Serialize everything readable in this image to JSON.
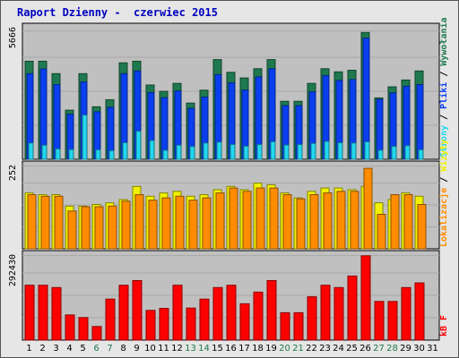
{
  "title": "Raport Dzienny -  czerwiec 2015",
  "colors": {
    "hits": "#1e7a4e",
    "files": "#0a3ff0",
    "pages": "#22d8f0",
    "visits": "#f0f000",
    "sites": "#ff8c00",
    "kbytes": "#ff0000",
    "weekend_label": "#1e7a4e",
    "weekday_label": "#000000"
  },
  "chart_data": [
    {
      "type": "bar",
      "name": "hits-files-pages",
      "y_max_label": "5666",
      "ylim": [
        0,
        5666
      ],
      "legend": [
        "Wywołania",
        "Pliki",
        "Strony"
      ],
      "legend_colors": [
        "#1e7a4e",
        "#0a3ff0",
        "#22d8f0"
      ],
      "categories": [
        "1",
        "2",
        "3",
        "4",
        "5",
        "6",
        "7",
        "8",
        "9",
        "10",
        "11",
        "12",
        "13",
        "14",
        "15",
        "16",
        "17",
        "18",
        "19",
        "20",
        "21",
        "22",
        "23",
        "24",
        "25",
        "26",
        "27",
        "28",
        "29",
        "30",
        "31"
      ],
      "series": [
        {
          "name": "Wywołania",
          "values": [
            4330,
            4330,
            3780,
            2170,
            3780,
            2320,
            2630,
            4260,
            4330,
            3280,
            3000,
            3350,
            2480,
            3050,
            4400,
            3840,
            3590,
            4000,
            4400,
            2560,
            2560,
            3350,
            4000,
            3860,
            3930,
            5600,
            2710,
            3200,
            3500,
            3900,
            0
          ]
        },
        {
          "name": "Pliki",
          "values": [
            3780,
            3990,
            3300,
            1990,
            3410,
            2100,
            2300,
            3780,
            3900,
            2950,
            2720,
            3020,
            2250,
            2750,
            3740,
            3380,
            3060,
            3640,
            4000,
            2370,
            2370,
            2980,
            3700,
            3480,
            3520,
            5350,
            2650,
            2930,
            3230,
            3300,
            0
          ]
        },
        {
          "name": "Strony",
          "values": [
            720,
            620,
            460,
            430,
            1950,
            420,
            380,
            730,
            1240,
            830,
            400,
            620,
            560,
            720,
            760,
            650,
            580,
            650,
            780,
            630,
            650,
            700,
            790,
            730,
            720,
            770,
            400,
            570,
            600,
            420,
            0
          ]
        }
      ]
    },
    {
      "type": "bar",
      "name": "visits-sites",
      "y_max_label": "252",
      "ylim": [
        0,
        252
      ],
      "legend": [
        "Wizyty",
        "Lokalizacje"
      ],
      "legend_colors": [
        "#f0f000",
        "#ff8c00"
      ],
      "categories": [
        "1",
        "2",
        "3",
        "4",
        "5",
        "6",
        "7",
        "8",
        "9",
        "10",
        "11",
        "12",
        "13",
        "14",
        "15",
        "16",
        "17",
        "18",
        "19",
        "20",
        "21",
        "22",
        "23",
        "24",
        "25",
        "26",
        "27",
        "28",
        "29",
        "30",
        "31"
      ],
      "series": [
        {
          "name": "Wizyty",
          "values": [
            170,
            165,
            165,
            130,
            130,
            135,
            140,
            150,
            190,
            160,
            170,
            175,
            160,
            165,
            180,
            190,
            180,
            200,
            195,
            170,
            155,
            175,
            185,
            185,
            180,
            190,
            140,
            150,
            170,
            160,
            0
          ]
        },
        {
          "name": "Lokalizacje",
          "values": [
            165,
            160,
            160,
            115,
            128,
            128,
            130,
            145,
            165,
            148,
            155,
            160,
            148,
            155,
            170,
            185,
            175,
            185,
            185,
            165,
            152,
            165,
            170,
            175,
            175,
            245,
            105,
            165,
            165,
            135,
            0
          ]
        }
      ]
    },
    {
      "type": "bar",
      "name": "kbytes",
      "y_max_label": "292430",
      "ylim": [
        0,
        292430
      ],
      "legend": [
        "kB F"
      ],
      "legend_colors": [
        "#ff0000"
      ],
      "categories": [
        "1",
        "2",
        "3",
        "4",
        "5",
        "6",
        "7",
        "8",
        "9",
        "10",
        "11",
        "12",
        "13",
        "14",
        "15",
        "16",
        "17",
        "18",
        "19",
        "20",
        "21",
        "22",
        "23",
        "24",
        "25",
        "26",
        "27",
        "28",
        "29",
        "30",
        "31"
      ],
      "series": [
        {
          "name": "kB F",
          "values": [
            190000,
            190000,
            182000,
            87000,
            78000,
            47000,
            142000,
            190000,
            206000,
            103000,
            110000,
            190000,
            111000,
            142000,
            182000,
            190000,
            126000,
            166000,
            206000,
            95000,
            95000,
            150000,
            190000,
            182000,
            222000,
            292000,
            134000,
            134000,
            182000,
            198000,
            0
          ]
        }
      ]
    }
  ],
  "days": [
    {
      "label": "1",
      "weekend": false
    },
    {
      "label": "2",
      "weekend": false
    },
    {
      "label": "3",
      "weekend": false
    },
    {
      "label": "4",
      "weekend": false
    },
    {
      "label": "5",
      "weekend": false
    },
    {
      "label": "6",
      "weekend": true
    },
    {
      "label": "7",
      "weekend": true
    },
    {
      "label": "8",
      "weekend": false
    },
    {
      "label": "9",
      "weekend": false
    },
    {
      "label": "10",
      "weekend": false
    },
    {
      "label": "11",
      "weekend": false
    },
    {
      "label": "12",
      "weekend": false
    },
    {
      "label": "13",
      "weekend": true
    },
    {
      "label": "14",
      "weekend": true
    },
    {
      "label": "15",
      "weekend": false
    },
    {
      "label": "16",
      "weekend": false
    },
    {
      "label": "17",
      "weekend": false
    },
    {
      "label": "18",
      "weekend": false
    },
    {
      "label": "19",
      "weekend": false
    },
    {
      "label": "20",
      "weekend": true
    },
    {
      "label": "21",
      "weekend": true
    },
    {
      "label": "22",
      "weekend": false
    },
    {
      "label": "23",
      "weekend": false
    },
    {
      "label": "24",
      "weekend": false
    },
    {
      "label": "25",
      "weekend": false
    },
    {
      "label": "26",
      "weekend": false
    },
    {
      "label": "27",
      "weekend": true
    },
    {
      "label": "28",
      "weekend": true
    },
    {
      "label": "29",
      "weekend": false
    },
    {
      "label": "30",
      "weekend": false
    },
    {
      "label": "31",
      "weekend": false
    }
  ]
}
